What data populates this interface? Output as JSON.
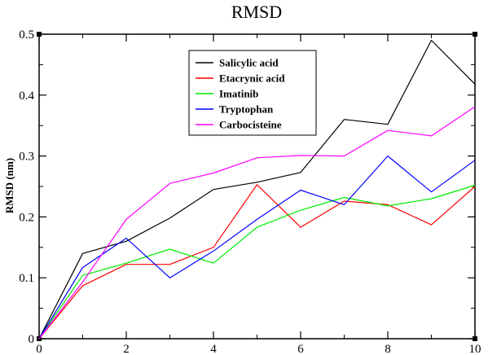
{
  "chart_data": {
    "type": "line",
    "title": "RMSD",
    "xlabel": "",
    "ylabel": "RMSD (nm)",
    "xlim": [
      0,
      10
    ],
    "ylim": [
      0,
      0.5
    ],
    "x_ticks": [
      0,
      2,
      4,
      6,
      8,
      10
    ],
    "y_ticks": [
      0,
      0.1,
      0.2,
      0.3,
      0.4,
      0.5
    ],
    "x_tick_labels": [
      "0",
      "2",
      "4",
      "6",
      "8",
      "10"
    ],
    "y_tick_labels": [
      "0",
      "0.1",
      "0.2",
      "0.3",
      "0.4",
      "0.5"
    ],
    "grid": false,
    "legend_position": "top-center",
    "x": [
      0,
      1,
      2,
      3,
      4,
      5,
      6,
      7,
      8,
      9,
      10
    ],
    "series": [
      {
        "name": "Salicylic acid",
        "color": "#000000",
        "values": [
          0,
          0.14,
          0.16,
          0.198,
          0.245,
          0.257,
          0.273,
          0.36,
          0.352,
          0.49,
          0.418
        ]
      },
      {
        "name": "Etacrynic acid",
        "color": "#ff0000",
        "values": [
          0,
          0.087,
          0.122,
          0.122,
          0.15,
          0.253,
          0.183,
          0.226,
          0.22,
          0.187,
          0.25
        ]
      },
      {
        "name": "Imatinib",
        "color": "#00ee00",
        "values": [
          0,
          0.104,
          0.124,
          0.147,
          0.124,
          0.183,
          0.211,
          0.232,
          0.218,
          0.23,
          0.252
        ]
      },
      {
        "name": "Tryptophan",
        "color": "#0000ff",
        "values": [
          0,
          0.117,
          0.165,
          0.1,
          0.144,
          0.196,
          0.244,
          0.22,
          0.3,
          0.241,
          0.293
        ]
      },
      {
        "name": "Carbocisteine",
        "color": "#ff00ff",
        "values": [
          0,
          0.093,
          0.196,
          0.255,
          0.272,
          0.297,
          0.301,
          0.3,
          0.342,
          0.333,
          0.381
        ]
      }
    ]
  }
}
